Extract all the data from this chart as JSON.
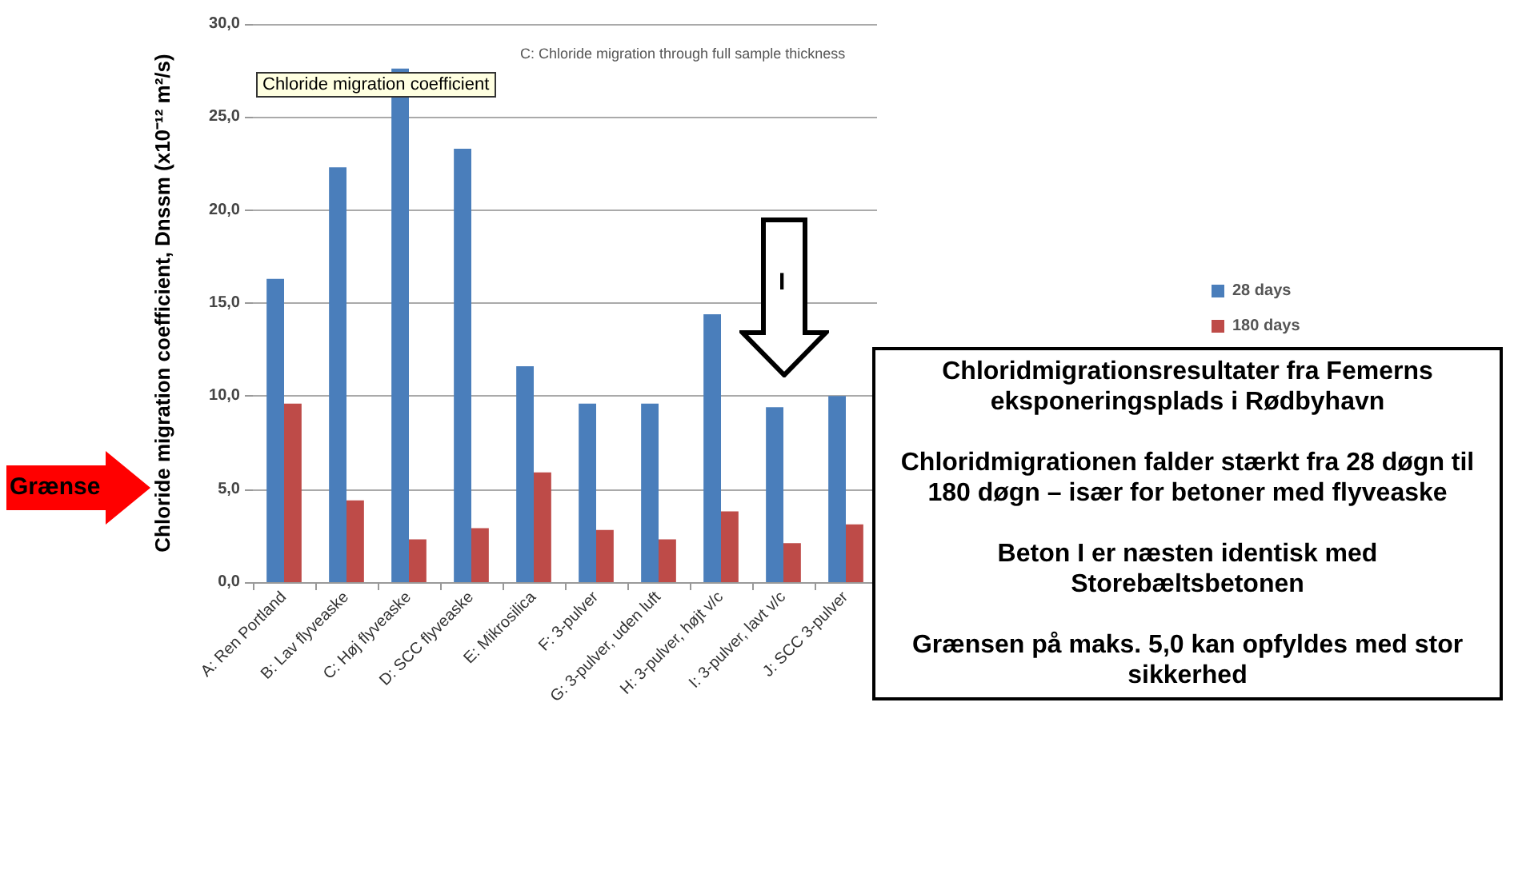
{
  "chart_data": {
    "type": "bar",
    "title": "C: Chloride migration through full sample thickness",
    "ylabel": "Chloride migration coefficient, Dnssm (x10⁻¹² m²/s)",
    "categories": [
      "A: Ren Portland",
      "B: Lav flyveaske",
      "C: Høj flyveaske",
      "D: SCC flyveaske",
      "E: Mikrosilica",
      "F: 3-pulver",
      "G: 3-pulver, uden luft",
      "H: 3-pulver, højt v/c",
      "I: 3-pulver, lavt v/c",
      "J: SCC 3-pulver"
    ],
    "series": [
      {
        "name": "28 days",
        "color": "#4a7ebb",
        "values": [
          16.3,
          22.3,
          27.6,
          23.3,
          11.6,
          9.6,
          9.6,
          14.4,
          9.4,
          10
        ]
      },
      {
        "name": "180 days",
        "color": "#be4b48",
        "values": [
          9.6,
          4.4,
          2.3,
          2.9,
          5.9,
          2.8,
          2.3,
          3.8,
          2.1,
          3.1
        ]
      }
    ],
    "ylim": [
      0,
      30
    ],
    "yticks": [
      {
        "value": 0,
        "label": "0,0"
      },
      {
        "value": 5,
        "label": "5,0"
      },
      {
        "value": 10,
        "label": "10,0"
      },
      {
        "value": 15,
        "label": "15,0"
      },
      {
        "value": 20,
        "label": "20,0"
      },
      {
        "value": 25,
        "label": "25,0"
      },
      {
        "value": 30,
        "label": "30,0"
      }
    ],
    "grid": "y",
    "legend": "right",
    "annotations": [
      "Chloride migration coefficient",
      "Grænse",
      "I",
      "Chloridmigrationsresultater fra Femerns eksponeringsplads i Rødbyhavn",
      "Chloridmigrationen falder stærkt fra 28 døgn til 180 døgn – især for betoner med flyveaske",
      "Beton I er næsten identisk med Storebæltsbetonen",
      "Grænsen på maks. 5,0 kan opfyldes med stor sikkerhed"
    ]
  }
}
